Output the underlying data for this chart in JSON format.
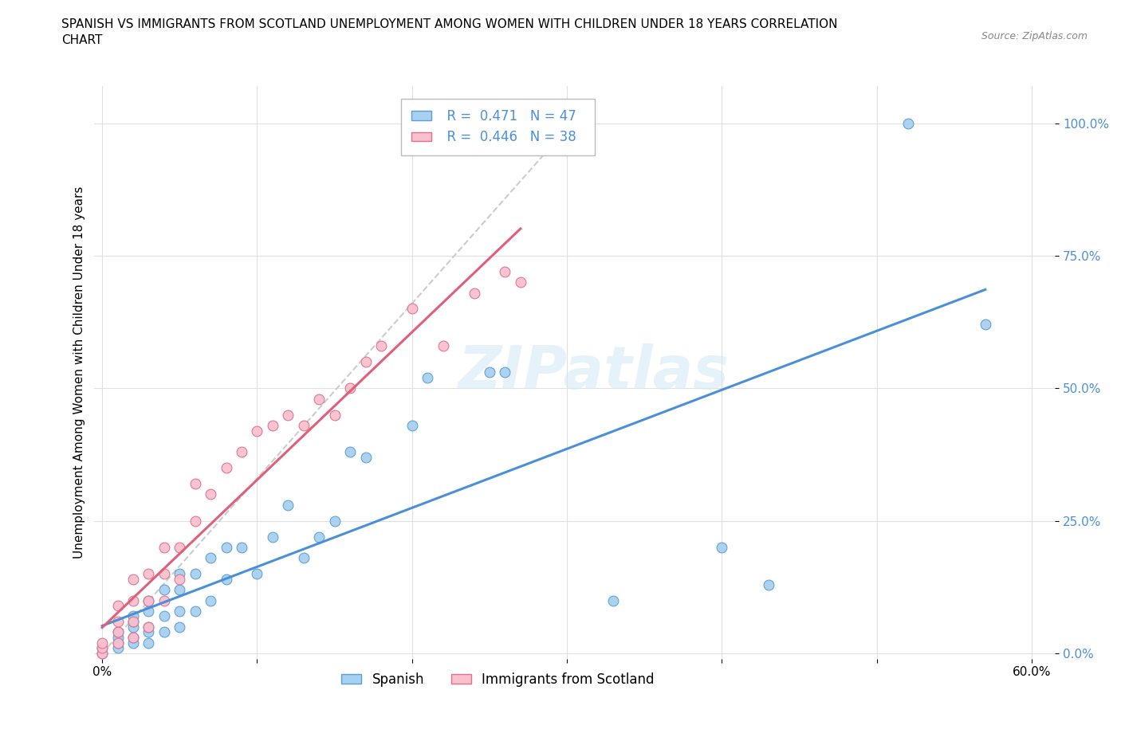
{
  "title": "SPANISH VS IMMIGRANTS FROM SCOTLAND UNEMPLOYMENT AMONG WOMEN WITH CHILDREN UNDER 18 YEARS CORRELATION\nCHART",
  "source": "Source: ZipAtlas.com",
  "ylabel": "Unemployment Among Women with Children Under 18 years",
  "ytick_labels": [
    "0.0%",
    "25.0%",
    "50.0%",
    "75.0%",
    "100.0%"
  ],
  "ytick_values": [
    0.0,
    0.25,
    0.5,
    0.75,
    1.0
  ],
  "xtick_values": [
    0.0,
    0.1,
    0.2,
    0.3,
    0.4,
    0.5,
    0.6
  ],
  "xtick_labels": [
    "0%",
    "",
    "",
    "",
    "",
    "",
    "60.0%"
  ],
  "blue_fill": "#A8D0F0",
  "blue_edge": "#5A9FD4",
  "pink_fill": "#F9C0CE",
  "pink_edge": "#E07090",
  "trend_blue": "#4A90D9",
  "trend_pink": "#E0607A",
  "dash_color": "#CCCCCC",
  "R_blue": 0.471,
  "N_blue": 47,
  "R_pink": 0.446,
  "N_pink": 38,
  "legend_label_blue": "Spanish",
  "legend_label_pink": "Immigrants from Scotland",
  "watermark": "ZIPatlas",
  "spanish_x": [
    0.0,
    0.0,
    0.01,
    0.01,
    0.01,
    0.01,
    0.02,
    0.02,
    0.02,
    0.02,
    0.02,
    0.03,
    0.03,
    0.03,
    0.03,
    0.03,
    0.04,
    0.04,
    0.04,
    0.05,
    0.05,
    0.05,
    0.05,
    0.06,
    0.06,
    0.07,
    0.07,
    0.08,
    0.08,
    0.09,
    0.1,
    0.11,
    0.12,
    0.13,
    0.14,
    0.15,
    0.16,
    0.17,
    0.2,
    0.21,
    0.25,
    0.26,
    0.33,
    0.4,
    0.43,
    0.52,
    0.57
  ],
  "spanish_y": [
    0.0,
    0.01,
    0.01,
    0.02,
    0.03,
    0.04,
    0.02,
    0.03,
    0.05,
    0.06,
    0.07,
    0.02,
    0.04,
    0.05,
    0.08,
    0.1,
    0.04,
    0.07,
    0.12,
    0.05,
    0.08,
    0.12,
    0.15,
    0.08,
    0.15,
    0.1,
    0.18,
    0.14,
    0.2,
    0.2,
    0.15,
    0.22,
    0.28,
    0.18,
    0.22,
    0.25,
    0.38,
    0.37,
    0.43,
    0.52,
    0.53,
    0.53,
    0.1,
    0.2,
    0.13,
    1.0,
    0.62
  ],
  "scotland_x": [
    0.0,
    0.0,
    0.0,
    0.01,
    0.01,
    0.01,
    0.01,
    0.02,
    0.02,
    0.02,
    0.02,
    0.03,
    0.03,
    0.03,
    0.04,
    0.04,
    0.04,
    0.05,
    0.05,
    0.06,
    0.06,
    0.07,
    0.08,
    0.09,
    0.1,
    0.11,
    0.12,
    0.13,
    0.14,
    0.15,
    0.16,
    0.17,
    0.18,
    0.2,
    0.22,
    0.24,
    0.26,
    0.27
  ],
  "scotland_y": [
    0.0,
    0.01,
    0.02,
    0.02,
    0.04,
    0.06,
    0.09,
    0.03,
    0.06,
    0.1,
    0.14,
    0.05,
    0.1,
    0.15,
    0.1,
    0.15,
    0.2,
    0.14,
    0.2,
    0.25,
    0.32,
    0.3,
    0.35,
    0.38,
    0.42,
    0.43,
    0.45,
    0.43,
    0.48,
    0.45,
    0.5,
    0.55,
    0.58,
    0.65,
    0.58,
    0.68,
    0.72,
    0.7
  ]
}
